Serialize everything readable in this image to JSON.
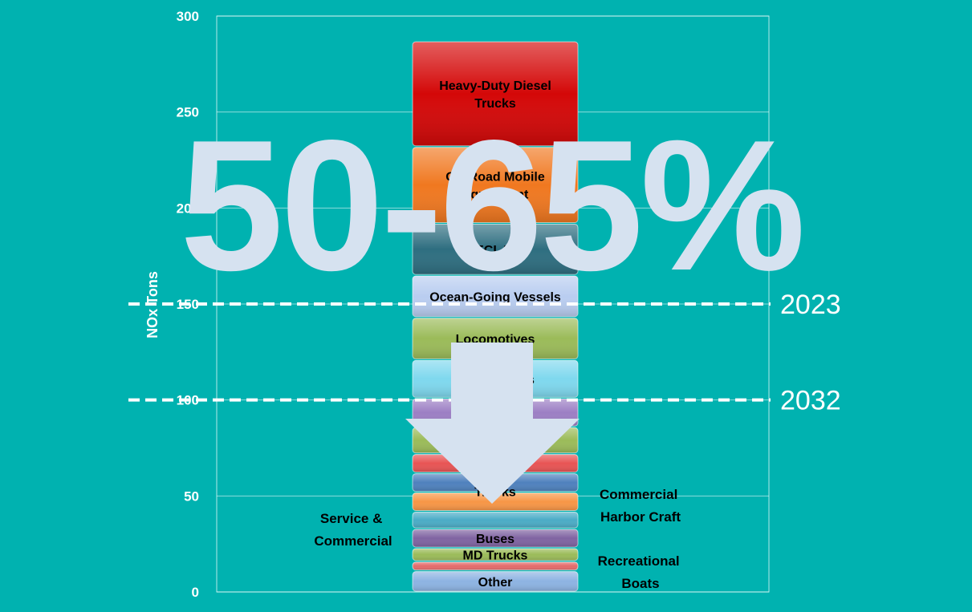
{
  "chart_data": {
    "type": "bar",
    "stacked": true,
    "ylabel": "NOx Tons",
    "ylim": [
      0,
      300
    ],
    "yticks": [
      0,
      50,
      100,
      150,
      200,
      250,
      300
    ],
    "grid": true,
    "segments": [
      {
        "label": "Other",
        "value": 11,
        "color": "#8db3e2"
      },
      {
        "label": "",
        "value": 5,
        "color": "#e46c6c"
      },
      {
        "label": "MD Trucks",
        "value": 7,
        "color": "#9bbb59"
      },
      {
        "label": "Buses",
        "value": 10,
        "color": "#8064a2"
      },
      {
        "label": "",
        "value": 9,
        "color": "#4bacc6"
      },
      {
        "label": "",
        "value": 10,
        "color": "#f79646"
      },
      {
        "label": "HD Gas Trucks",
        "value": 10,
        "color": "#4f81bd"
      },
      {
        "label": "Fuel",
        "value": 10,
        "color": "#e85454"
      },
      {
        "label": "",
        "value": 14,
        "color": "#9bbb59"
      },
      {
        "label": "",
        "value": 15,
        "color": "#9c7fc4"
      },
      {
        "label": "Trucks/SUVs",
        "value": 20,
        "color": "#7fd8ee"
      },
      {
        "label": "Locomotives",
        "value": 22,
        "color": "#9bbb59"
      },
      {
        "label": "Ocean-Going Vessels",
        "value": 22,
        "color": "#b9cdf0"
      },
      {
        "label": "RECLAIM",
        "value": 27,
        "color": "#2e6e80"
      },
      {
        "label": "Off-Road Mobile Equipment",
        "value": 40,
        "color": "#f07820"
      },
      {
        "label": "Heavy-Duty Diesel Trucks",
        "value": 55,
        "color": "#d40808"
      }
    ],
    "side_labels": [
      "Service & Commercial",
      "Commercial Harbor Craft",
      "Recreational Boats"
    ],
    "target_lines": [
      {
        "label": "2023",
        "value": 150
      },
      {
        "label": "2032",
        "value": 100
      }
    ],
    "overlay_text": "50-65%"
  }
}
